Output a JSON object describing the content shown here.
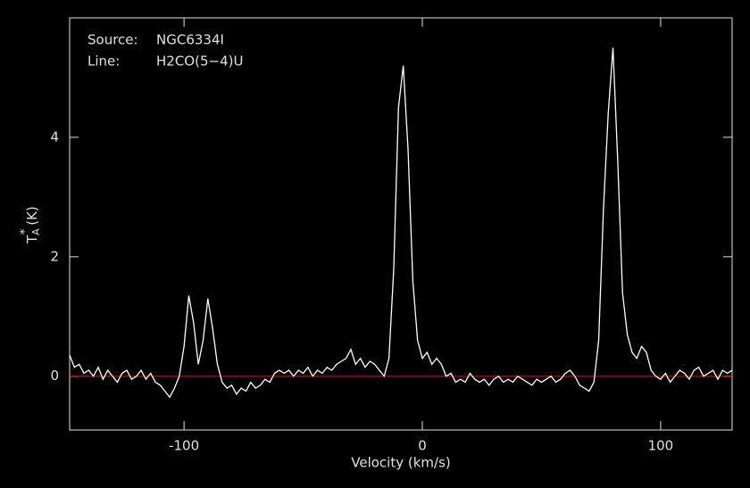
{
  "chart_data": {
    "type": "line",
    "annotations": [
      {
        "label": "Source:",
        "value": "NGC6334I"
      },
      {
        "label": "Line:",
        "value": "H2CO(5−4)U"
      }
    ],
    "xlabel": "Velocity (km/s)",
    "ylabel": {
      "symbol": "T",
      "subscript": "A",
      "superscript": "*",
      "unit": "(K)"
    },
    "x": [
      -148,
      -146,
      -144,
      -142,
      -140,
      -138,
      -136,
      -134,
      -132,
      -130,
      -128,
      -126,
      -124,
      -122,
      -120,
      -118,
      -116,
      -114,
      -112,
      -110,
      -108,
      -106,
      -104,
      -102,
      -100,
      -98,
      -96,
      -94,
      -92,
      -90,
      -88,
      -86,
      -84,
      -82,
      -80,
      -78,
      -76,
      -74,
      -72,
      -70,
      -68,
      -66,
      -64,
      -62,
      -60,
      -58,
      -56,
      -54,
      -52,
      -50,
      -48,
      -46,
      -44,
      -42,
      -40,
      -38,
      -36,
      -34,
      -32,
      -30,
      -28,
      -26,
      -24,
      -22,
      -20,
      -18,
      -16,
      -14,
      -12,
      -10,
      -8,
      -6,
      -4,
      -2,
      0,
      2,
      4,
      6,
      8,
      10,
      12,
      14,
      16,
      18,
      20,
      22,
      24,
      26,
      28,
      30,
      32,
      34,
      36,
      38,
      40,
      42,
      44,
      46,
      48,
      50,
      52,
      54,
      56,
      58,
      60,
      62,
      64,
      66,
      68,
      70,
      72,
      74,
      76,
      78,
      80,
      82,
      84,
      86,
      88,
      90,
      92,
      94,
      96,
      98,
      100,
      102,
      104,
      106,
      108,
      110,
      112,
      114,
      116,
      118,
      120,
      122,
      124,
      126,
      128,
      130
    ],
    "values": [
      0.35,
      0.15,
      0.2,
      0.05,
      0.1,
      0.0,
      0.15,
      -0.05,
      0.1,
      0.0,
      -0.1,
      0.05,
      0.1,
      -0.05,
      0.0,
      0.1,
      -0.05,
      0.05,
      -0.1,
      -0.15,
      -0.25,
      -0.35,
      -0.2,
      0.0,
      0.5,
      1.35,
      0.9,
      0.2,
      0.6,
      1.3,
      0.8,
      0.2,
      -0.1,
      -0.2,
      -0.15,
      -0.3,
      -0.2,
      -0.25,
      -0.1,
      -0.2,
      -0.15,
      -0.05,
      -0.1,
      0.05,
      0.1,
      0.05,
      0.1,
      0.0,
      0.1,
      0.05,
      0.15,
      0.0,
      0.1,
      0.05,
      0.15,
      0.1,
      0.2,
      0.25,
      0.3,
      0.45,
      0.2,
      0.3,
      0.15,
      0.25,
      0.2,
      0.1,
      0.0,
      0.3,
      1.8,
      4.5,
      5.2,
      3.8,
      1.6,
      0.6,
      0.3,
      0.4,
      0.2,
      0.3,
      0.2,
      0.0,
      0.05,
      -0.1,
      -0.05,
      -0.1,
      0.05,
      -0.05,
      -0.1,
      -0.05,
      -0.15,
      -0.05,
      0.0,
      -0.1,
      -0.05,
      -0.1,
      0.0,
      -0.05,
      -0.1,
      -0.15,
      -0.05,
      -0.1,
      -0.05,
      0.0,
      -0.1,
      -0.05,
      0.05,
      0.1,
      0.0,
      -0.15,
      -0.2,
      -0.25,
      -0.1,
      0.6,
      2.8,
      4.4,
      5.5,
      3.6,
      1.4,
      0.7,
      0.4,
      0.3,
      0.5,
      0.4,
      0.1,
      0.0,
      -0.05,
      0.05,
      -0.1,
      0.0,
      0.1,
      0.05,
      -0.05,
      0.1,
      0.15,
      0.0,
      0.05,
      0.1,
      -0.05,
      0.1,
      0.05,
      0.1
    ],
    "color": "#ffffff",
    "baseline": 0,
    "baseline_color": "#d01010",
    "xlim": [
      -148,
      130
    ],
    "xticks": [
      -100,
      0,
      100
    ],
    "ylim": [
      -0.9,
      6
    ],
    "yticks": [
      0,
      2,
      4
    ]
  }
}
